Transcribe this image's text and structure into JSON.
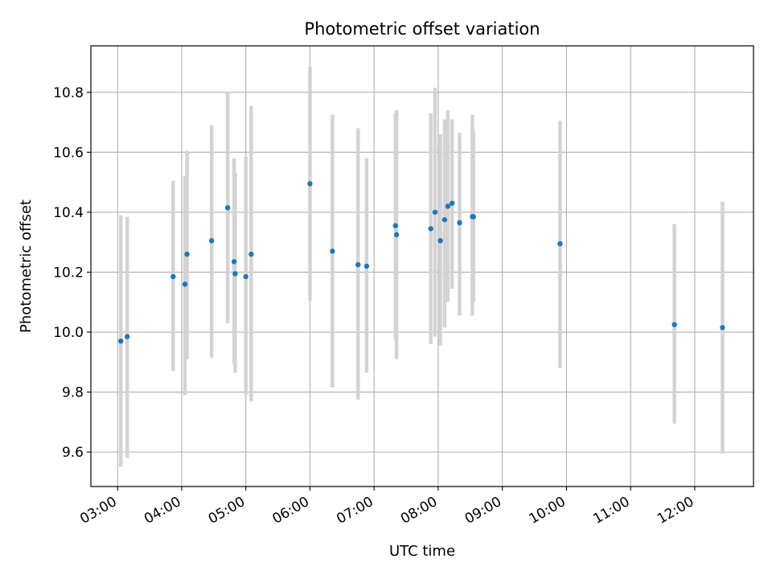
{
  "chart_data": {
    "type": "scatter",
    "title": "Photometric offset variation",
    "xlabel": "UTC time",
    "ylabel": "Photometric offset",
    "xlim": [
      "02:35",
      "12:55"
    ],
    "ylim": [
      9.485,
      10.955
    ],
    "grid": true,
    "x_ticks": [
      "03:00",
      "04:00",
      "05:00",
      "06:00",
      "07:00",
      "08:00",
      "09:00",
      "10:00",
      "11:00",
      "12:00"
    ],
    "y_ticks": [
      "9.6",
      "9.8",
      "10.0",
      "10.2",
      "10.4",
      "10.6",
      "10.8"
    ],
    "colors": {
      "point": "#1f77b4",
      "errorbar": "#d3d3d3",
      "grid": "#b0b0b0"
    },
    "series": [
      {
        "points": [
          {
            "x": "03:03",
            "y": 9.97,
            "ylo": 9.55,
            "yhi": 10.39
          },
          {
            "x": "03:09",
            "y": 9.985,
            "ylo": 9.58,
            "yhi": 10.385
          },
          {
            "x": "03:52",
            "y": 10.185,
            "ylo": 9.87,
            "yhi": 10.505
          },
          {
            "x": "04:03",
            "y": 10.16,
            "ylo": 9.79,
            "yhi": 10.52
          },
          {
            "x": "04:05",
            "y": 10.26,
            "ylo": 9.91,
            "yhi": 10.605
          },
          {
            "x": "04:28",
            "y": 10.305,
            "ylo": 9.915,
            "yhi": 10.69
          },
          {
            "x": "04:43",
            "y": 10.415,
            "ylo": 10.03,
            "yhi": 10.8
          },
          {
            "x": "04:49",
            "y": 10.235,
            "ylo": 9.895,
            "yhi": 10.58
          },
          {
            "x": "04:50",
            "y": 10.195,
            "ylo": 9.865,
            "yhi": 10.53
          },
          {
            "x": "05:00",
            "y": 10.185,
            "ylo": 9.79,
            "yhi": 10.585
          },
          {
            "x": "05:05",
            "y": 10.26,
            "ylo": 9.77,
            "yhi": 10.755
          },
          {
            "x": "06:00",
            "y": 10.495,
            "ylo": 10.105,
            "yhi": 10.885
          },
          {
            "x": "06:21",
            "y": 10.27,
            "ylo": 9.815,
            "yhi": 10.725
          },
          {
            "x": "06:45",
            "y": 10.225,
            "ylo": 9.775,
            "yhi": 10.68
          },
          {
            "x": "06:53",
            "y": 10.22,
            "ylo": 9.865,
            "yhi": 10.58
          },
          {
            "x": "07:20",
            "y": 10.355,
            "ylo": 9.975,
            "yhi": 10.73
          },
          {
            "x": "07:21",
            "y": 10.325,
            "ylo": 9.91,
            "yhi": 10.74
          },
          {
            "x": "07:53",
            "y": 10.345,
            "ylo": 9.96,
            "yhi": 10.73
          },
          {
            "x": "07:57",
            "y": 10.4,
            "ylo": 9.985,
            "yhi": 10.815
          },
          {
            "x": "08:02",
            "y": 10.305,
            "ylo": 9.955,
            "yhi": 10.66
          },
          {
            "x": "08:06",
            "y": 10.375,
            "ylo": 10.015,
            "yhi": 10.71
          },
          {
            "x": "08:09",
            "y": 10.42,
            "ylo": 10.1,
            "yhi": 10.74
          },
          {
            "x": "08:13",
            "y": 10.43,
            "ylo": 10.145,
            "yhi": 10.71
          },
          {
            "x": "08:20",
            "y": 10.365,
            "ylo": 10.055,
            "yhi": 10.665
          },
          {
            "x": "08:32",
            "y": 10.385,
            "ylo": 10.055,
            "yhi": 10.725
          },
          {
            "x": "08:33",
            "y": 10.385,
            "ylo": 10.1,
            "yhi": 10.67
          },
          {
            "x": "09:54",
            "y": 10.295,
            "ylo": 9.88,
            "yhi": 10.705
          },
          {
            "x": "11:41",
            "y": 10.025,
            "ylo": 9.695,
            "yhi": 10.36
          },
          {
            "x": "12:26",
            "y": 10.015,
            "ylo": 9.595,
            "yhi": 10.435
          }
        ]
      }
    ]
  }
}
